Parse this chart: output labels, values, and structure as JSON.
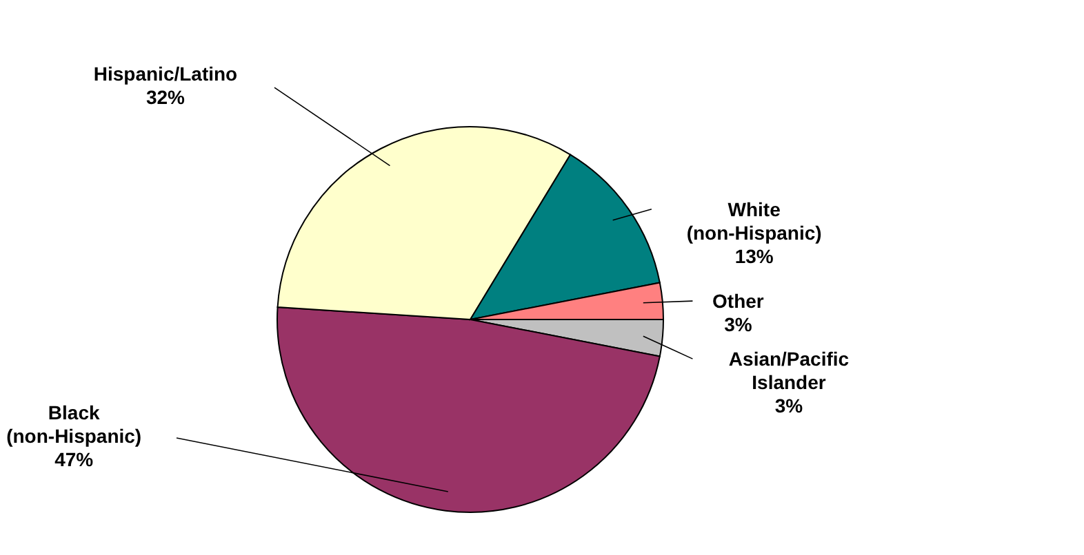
{
  "chart_data": {
    "type": "pie",
    "categories": [
      "Asian/Pacific\nIslander",
      "Black\n(non-Hispanic)",
      "Hispanic/Latino",
      "White\n(non-Hispanic)",
      "Other"
    ],
    "values": [
      3,
      47,
      32,
      13,
      3
    ],
    "colors": [
      "#c0c0c0",
      "#993366",
      "#ffffcc",
      "#008080",
      "#ff8080"
    ],
    "value_labels": [
      "3%",
      "47%",
      "32%",
      "13%",
      "3%"
    ]
  }
}
